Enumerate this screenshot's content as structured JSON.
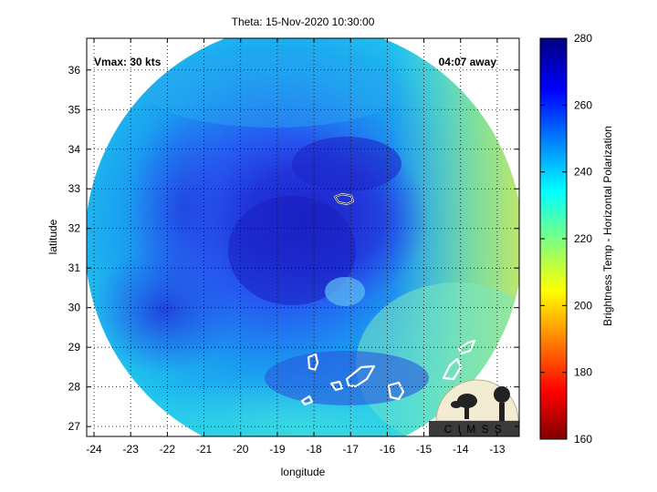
{
  "figure": {
    "title": "Theta: 15-Nov-2020 10:30:00",
    "xlabel": "longitude",
    "ylabel": "latitude",
    "annotation_left": "Vmax: 30 kts",
    "annotation_right": "04:07 away",
    "logo_text": "C I M S S"
  },
  "axes": {
    "x_ticks": [
      -24,
      -23,
      -22,
      -21,
      -20,
      -19,
      -18,
      -17,
      -16,
      -15,
      -14,
      -13
    ],
    "y_ticks": [
      27,
      28,
      29,
      30,
      31,
      32,
      33,
      34,
      35,
      36
    ],
    "x_range": [
      -24.2,
      -12.4
    ],
    "y_range": [
      26.75,
      36.8
    ]
  },
  "colorbar": {
    "label": "Brightness Temp - Horizontal Polarization",
    "ticks": [
      160,
      180,
      200,
      220,
      240,
      260,
      280
    ],
    "range": [
      160,
      280
    ]
  },
  "chart_data": {
    "type": "heatmap",
    "title": "Theta: 15-Nov-2020 10:30:00",
    "xlabel": "longitude",
    "ylabel": "latitude",
    "xlim": [
      -24.2,
      -12.4
    ],
    "ylim": [
      26.75,
      36.8
    ],
    "zlabel": "Brightness Temp - Horizontal Polarization",
    "zlim": [
      160,
      280
    ],
    "swath_center": {
      "lon": -18.3,
      "lat": 31.7
    },
    "storm_center": {
      "lon": -18.8,
      "lat": 31.6
    },
    "values_description_points": [
      {
        "lon": -18.8,
        "lat": 31.6,
        "tb": 266
      },
      {
        "lon": -17.5,
        "lat": 33.5,
        "tb": 262
      },
      {
        "lon": -22.5,
        "lat": 30.3,
        "tb": 258
      },
      {
        "lon": -21.0,
        "lat": 35.0,
        "tb": 245
      },
      {
        "lon": -13.2,
        "lat": 31.5,
        "tb": 218
      },
      {
        "lon": -13.0,
        "lat": 29.8,
        "tb": 212
      },
      {
        "lon": -16.5,
        "lat": 27.5,
        "tb": 232
      }
    ],
    "land_contours": [
      {
        "name": "island-1",
        "lon": -17.0,
        "lat": 32.75
      },
      {
        "name": "island-2",
        "lon": -17.8,
        "lat": 28.7
      },
      {
        "name": "island-3",
        "lon": -17.1,
        "lat": 28.1
      },
      {
        "name": "island-4",
        "lon": -16.6,
        "lat": 28.3
      },
      {
        "name": "island-5",
        "lon": -15.6,
        "lat": 27.95
      },
      {
        "name": "island-6",
        "lon": -14.0,
        "lat": 28.5
      },
      {
        "name": "island-7",
        "lon": -13.6,
        "lat": 29.0
      },
      {
        "name": "island-8",
        "lon": -17.9,
        "lat": 27.7
      }
    ]
  }
}
